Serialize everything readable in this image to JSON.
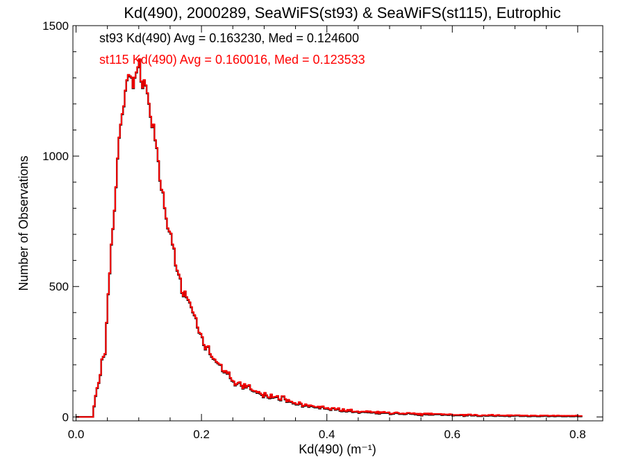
{
  "chart_data": {
    "type": "histogram",
    "title": "Kd(490), 2000289, SeaWiFS(st93) & SeaWiFS(st115), Eutrophic",
    "xlabel": "Kd(490) (m⁻¹)",
    "ylabel": "Number of Observations",
    "xlim": [
      -0.005,
      0.84
    ],
    "ylim": [
      -15,
      1500
    ],
    "x_ticks": [
      0.0,
      0.2,
      0.4,
      0.6,
      0.8
    ],
    "x_tick_labels": [
      "0.0",
      "0.2",
      "0.4",
      "0.6",
      "0.8"
    ],
    "y_ticks": [
      0,
      500,
      1000,
      1500
    ],
    "y_tick_labels": [
      "0",
      "500",
      "1000",
      "1500"
    ],
    "grid": false,
    "bin_width": 0.0025,
    "x": [
      0.0,
      0.0025,
      0.005,
      0.0075,
      0.01,
      0.0125,
      0.015,
      0.0175,
      0.02,
      0.0225,
      0.025,
      0.0275,
      0.03,
      0.0325,
      0.035,
      0.0375,
      0.04,
      0.0425,
      0.045,
      0.0475,
      0.05,
      0.0525,
      0.055,
      0.0575,
      0.06,
      0.0625,
      0.065,
      0.0675,
      0.07,
      0.0725,
      0.075,
      0.0775,
      0.08,
      0.0825,
      0.085,
      0.0875,
      0.09,
      0.0925,
      0.095,
      0.0975,
      0.1,
      0.1025,
      0.105,
      0.1075,
      0.11,
      0.1125,
      0.115,
      0.1175,
      0.12,
      0.1225,
      0.125,
      0.1275,
      0.13,
      0.1325,
      0.135,
      0.1375,
      0.14,
      0.1425,
      0.145,
      0.1475,
      0.15,
      0.1525,
      0.155,
      0.1575,
      0.16,
      0.1625,
      0.165,
      0.1675,
      0.17,
      0.1725,
      0.175,
      0.1775,
      0.18,
      0.1825,
      0.185,
      0.1875,
      0.19,
      0.1925,
      0.195,
      0.1975,
      0.2,
      0.2025,
      0.205,
      0.2075,
      0.21,
      0.2125,
      0.215,
      0.2175,
      0.22,
      0.2225,
      0.225,
      0.2275,
      0.23,
      0.2325,
      0.235,
      0.2375,
      0.24,
      0.2425,
      0.245,
      0.2475,
      0.25,
      0.2525,
      0.255,
      0.2575,
      0.26,
      0.2625,
      0.265,
      0.2675,
      0.27,
      0.2725,
      0.275,
      0.2775,
      0.28,
      0.2825,
      0.285,
      0.2875,
      0.29,
      0.2925,
      0.295,
      0.2975,
      0.3,
      0.3025,
      0.305,
      0.3075,
      0.31,
      0.3125,
      0.315,
      0.3175,
      0.32,
      0.3225,
      0.325,
      0.3275,
      0.33,
      0.3325,
      0.335,
      0.3375,
      0.34,
      0.3425,
      0.345,
      0.3475,
      0.35,
      0.3525,
      0.355,
      0.3575,
      0.36,
      0.3625,
      0.365,
      0.3675,
      0.37,
      0.3725,
      0.375,
      0.3775,
      0.38,
      0.3825,
      0.385,
      0.3875,
      0.39,
      0.3925,
      0.395,
      0.3975,
      0.4,
      0.4025,
      0.405,
      0.4075,
      0.41,
      0.4125,
      0.415,
      0.4175,
      0.42,
      0.4225,
      0.425,
      0.4275,
      0.43,
      0.4325,
      0.435,
      0.4375,
      0.44,
      0.4425,
      0.445,
      0.4475,
      0.45,
      0.4525,
      0.455,
      0.4575,
      0.46,
      0.4625,
      0.465,
      0.4675,
      0.47,
      0.4725,
      0.475,
      0.4775,
      0.48,
      0.4825,
      0.485,
      0.4875,
      0.49,
      0.4925,
      0.495,
      0.4975,
      0.5,
      0.5025,
      0.505,
      0.5075,
      0.51,
      0.5125,
      0.515,
      0.5175,
      0.52,
      0.5225,
      0.525,
      0.5275,
      0.53,
      0.5325,
      0.535,
      0.5375,
      0.54,
      0.5425,
      0.545,
      0.5475,
      0.55,
      0.5525,
      0.555,
      0.5575,
      0.56,
      0.5625,
      0.565,
      0.5675,
      0.57,
      0.5725,
      0.575,
      0.5775,
      0.58,
      0.5825,
      0.585,
      0.5875,
      0.59,
      0.5925,
      0.595,
      0.5975,
      0.6,
      0.6025,
      0.605,
      0.6075,
      0.61,
      0.6125,
      0.615,
      0.6175,
      0.62,
      0.6225,
      0.625,
      0.6275,
      0.63,
      0.6325,
      0.635,
      0.6375,
      0.64,
      0.6425,
      0.645,
      0.6475,
      0.65,
      0.6525,
      0.655,
      0.6575,
      0.66,
      0.6625,
      0.665,
      0.6675,
      0.67,
      0.6725,
      0.675,
      0.6775,
      0.68,
      0.6825,
      0.685,
      0.6875,
      0.69,
      0.6925,
      0.695,
      0.6975,
      0.7,
      0.7025,
      0.705,
      0.7075,
      0.71,
      0.7125,
      0.715,
      0.7175,
      0.72,
      0.7225,
      0.725,
      0.7275,
      0.73,
      0.7325,
      0.735,
      0.7375,
      0.74,
      0.7425,
      0.745,
      0.7475,
      0.75,
      0.7525,
      0.755,
      0.7575,
      0.76,
      0.7625,
      0.765,
      0.7675,
      0.77,
      0.7725,
      0.775,
      0.7775,
      0.78,
      0.7825,
      0.785,
      0.7875,
      0.79,
      0.7925,
      0.795,
      0.7975,
      0.8,
      0.8025,
      0.805,
      0.8075,
      0.81,
      0.8125,
      0.815,
      0.8175,
      0.82,
      0.8225,
      0.825,
      0.8275,
      0.83,
      0.8325,
      0.835,
      0.8375
    ],
    "series": [
      {
        "name": "st93",
        "color": "#000000",
        "label": "st93 Kd(490) Avg = 0.163230, Med = 0.124600",
        "values": [
          0,
          0,
          0,
          0,
          0,
          0,
          0,
          0,
          0,
          0,
          0,
          40,
          80,
          110,
          130,
          160,
          220,
          230,
          240,
          360,
          470,
          550,
          660,
          720,
          790,
          880,
          990,
          1070,
          1120,
          1160,
          1190,
          1250,
          1290,
          1310,
          1305,
          1300,
          1260,
          1300,
          1320,
          1340,
          1370,
          1285,
          1260,
          1290,
          1270,
          1240,
          1200,
          1150,
          1110,
          1120,
          1060,
          1030,
          980,
          905,
          870,
          860,
          800,
          760,
          722,
          710,
          702,
          660,
          645,
          580,
          560,
          545,
          530,
          475,
          462,
          480,
          458,
          448,
          438,
          420,
          400,
          389,
          378,
          342,
          322,
          318,
          305,
          275,
          258,
          268,
          270,
          240,
          230,
          222,
          219,
          210,
          205,
          200,
          199,
          175,
          170,
          175,
          165,
          170,
          148,
          138,
          135,
          120,
          125,
          130,
          132,
          119,
          108,
          125,
          112,
          118,
          121,
          105,
          100,
          97,
          98,
          92,
          95,
          89,
          84,
          75,
          91,
          82,
          74,
          71,
          85,
          73,
          75,
          76,
          79,
          66,
          63,
          78,
          78,
          67,
          57,
          64,
          58,
          57,
          51,
          52,
          47,
          47,
          55,
          50,
          39,
          42,
          47,
          43,
          38,
          43,
          41,
          39,
          36,
          36,
          38,
          32,
          38,
          39,
          32,
          31,
          33,
          29,
          26,
          33,
          33,
          27,
          29,
          32,
          23,
          21,
          29,
          22,
          20,
          26,
          22,
          27,
          18,
          19,
          19,
          20,
          15,
          18,
          19,
          19,
          18,
          21,
          17,
          20,
          16,
          17,
          17,
          13,
          19,
          12,
          17,
          15,
          18,
          15,
          15,
          16,
          10,
          11,
          12,
          15,
          16,
          14,
          11,
          11,
          12,
          10,
          11,
          14,
          14,
          12,
          11,
          13,
          9,
          11,
          7,
          11,
          5,
          10,
          12,
          9,
          12,
          8,
          12,
          8,
          10,
          10,
          10,
          10,
          10,
          7,
          9,
          8,
          8,
          7,
          9,
          8,
          5,
          6,
          6,
          6,
          6,
          7,
          7,
          3,
          7,
          5,
          8,
          8,
          5,
          5,
          7,
          6,
          3,
          3,
          3,
          5,
          5,
          4,
          4,
          6,
          5,
          7,
          4,
          3,
          5,
          6,
          4,
          4,
          4,
          3,
          4,
          5,
          2,
          5,
          4,
          4,
          5,
          5,
          5,
          3,
          4,
          3,
          4,
          4,
          2,
          2,
          4,
          3,
          4,
          3,
          2,
          2,
          4,
          3,
          4,
          4,
          4,
          2,
          3,
          3,
          4,
          2,
          3,
          4,
          3,
          3,
          2,
          3,
          2,
          3,
          3,
          2,
          3,
          2,
          3,
          4,
          2,
          2,
          2
        ]
      },
      {
        "name": "st115",
        "color": "#ff0000",
        "label": "st115 Kd(490) Avg = 0.160016, Med = 0.123533",
        "values": [
          0,
          0,
          0,
          0,
          0,
          0,
          0,
          0,
          0,
          0,
          0,
          42,
          82,
          112,
          132,
          162,
          222,
          232,
          242,
          362,
          472,
          552,
          662,
          722,
          792,
          882,
          992,
          1072,
          1122,
          1162,
          1192,
          1252,
          1292,
          1312,
          1307,
          1302,
          1262,
          1302,
          1322,
          1342,
          1372,
          1287,
          1262,
          1292,
          1272,
          1242,
          1202,
          1152,
          1112,
          1122,
          1062,
          1032,
          982,
          907,
          872,
          862,
          802,
          762,
          724,
          712,
          704,
          662,
          647,
          582,
          562,
          547,
          532,
          477,
          464,
          482,
          460,
          450,
          440,
          422,
          402,
          391,
          380,
          344,
          324,
          320,
          307,
          277,
          260,
          270,
          272,
          242,
          232,
          224,
          221,
          212,
          207,
          202,
          201,
          177,
          172,
          177,
          167,
          172,
          150,
          140,
          137,
          122,
          127,
          132,
          134,
          121,
          110,
          127,
          114,
          120,
          123,
          107,
          102,
          99,
          100,
          94,
          97,
          91,
          86,
          77,
          93,
          84,
          76,
          73,
          87,
          75,
          77,
          78,
          81,
          68,
          65,
          80,
          80,
          69,
          59,
          66,
          60,
          59,
          53,
          54,
          49,
          49,
          57,
          52,
          41,
          44,
          49,
          45,
          40,
          45,
          43,
          41,
          38,
          38,
          40,
          34,
          40,
          41,
          34,
          33,
          35,
          31,
          28,
          35,
          35,
          29,
          31,
          34,
          25,
          23,
          31,
          24,
          22,
          28,
          24,
          29,
          20,
          21,
          21,
          22,
          17,
          20,
          21,
          21,
          20,
          23,
          19,
          22,
          18,
          19,
          19,
          15,
          21,
          14,
          19,
          17,
          20,
          17,
          17,
          18,
          12,
          13,
          14,
          17,
          18,
          16,
          13,
          13,
          14,
          12,
          13,
          16,
          16,
          14,
          13,
          15,
          11,
          13,
          9,
          13,
          7,
          12,
          14,
          11,
          14,
          10,
          14,
          10,
          12,
          12,
          12,
          12,
          12,
          9,
          11,
          10,
          10,
          9,
          11,
          10,
          7,
          8,
          8,
          8,
          8,
          9,
          9,
          5,
          9,
          7,
          10,
          10,
          7,
          7,
          9,
          8,
          5,
          5,
          5,
          7,
          7,
          6,
          6,
          8,
          7,
          9,
          6,
          5,
          7,
          8,
          6,
          6,
          6,
          5,
          6,
          7,
          4,
          7,
          6,
          6,
          7,
          7,
          7,
          5,
          6,
          5,
          6,
          6,
          4,
          4,
          6,
          5,
          6,
          5,
          4,
          4,
          6,
          5,
          6,
          6,
          6,
          4,
          5,
          5,
          6,
          4,
          5,
          6,
          5,
          5,
          4,
          5,
          4,
          5,
          5,
          4,
          5,
          4,
          5,
          6,
          4,
          4,
          4
        ]
      }
    ]
  }
}
